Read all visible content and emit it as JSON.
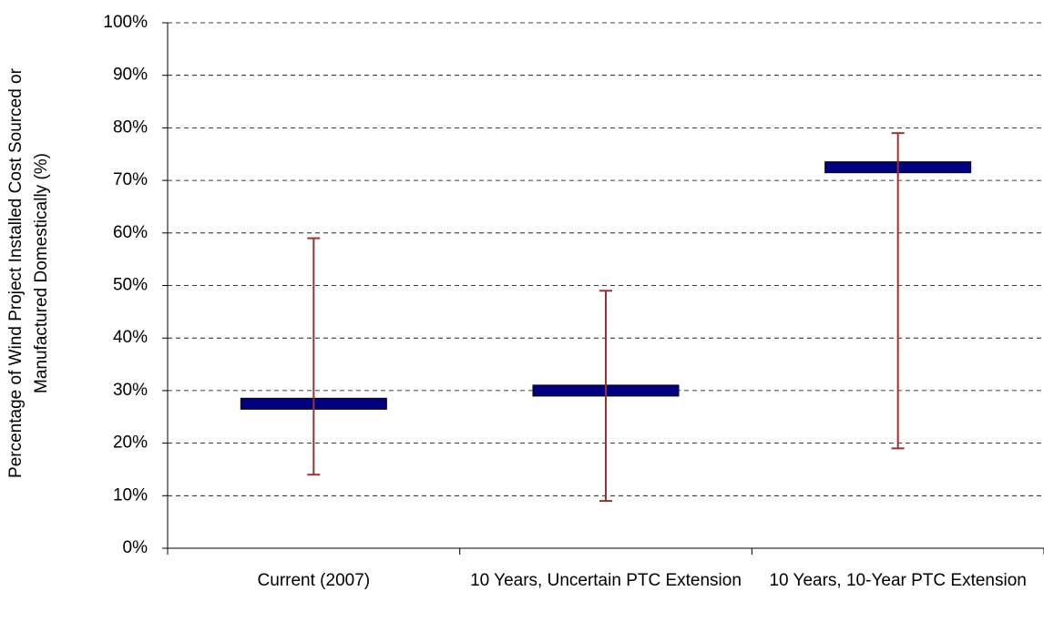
{
  "chart_data": {
    "type": "range",
    "y_label": [
      "Percentage of Wind Project Installed Cost Sourced or",
      "Manufactured Domestically  (%)"
    ],
    "categories": [
      "Current (2007)",
      "10 Years, Uncertain PTC Extension",
      "10 Years, 10-Year PTC Extension"
    ],
    "values": [
      27.5,
      30,
      72.5
    ],
    "low": [
      14,
      9,
      19
    ],
    "high": [
      59,
      49,
      79
    ],
    "color": "#000080",
    "error_color": "#993333",
    "ylim": [
      0,
      100
    ],
    "yticks": [
      {
        "value": 0,
        "label": "0%"
      },
      {
        "value": 10,
        "label": "10%"
      },
      {
        "value": 20,
        "label": "20%"
      },
      {
        "value": 30,
        "label": "30%"
      },
      {
        "value": 40,
        "label": "40%"
      },
      {
        "value": 50,
        "label": "50%"
      },
      {
        "value": 60,
        "label": "60%"
      },
      {
        "value": 70,
        "label": "70%"
      },
      {
        "value": 80,
        "label": "80%"
      },
      {
        "value": 90,
        "label": "90%"
      },
      {
        "value": 100,
        "label": "100%"
      }
    ],
    "grid": true
  }
}
